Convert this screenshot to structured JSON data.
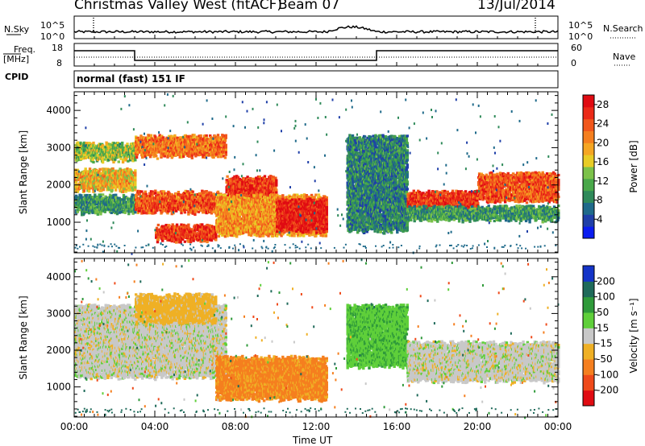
{
  "header": {
    "station": "Christmas Valley West (fitACF)",
    "beam": "Beam 07",
    "date": "13/Jul/2014"
  },
  "params": {
    "nsky_label": "N.Sky",
    "nsearch_label": "N.Search",
    "freq_label_top": "Freq.",
    "freq_label_bottom": "[MHz]",
    "nave_label": "Nave",
    "cpid_label": "CPID",
    "noise_ticks_left": [
      "10^5",
      "10^0"
    ],
    "noise_ticks_right": [
      "10^5",
      "10^0"
    ],
    "freq_ticks": [
      "18",
      "8"
    ],
    "nave_ticks": [
      "60",
      "0"
    ],
    "mode": "normal (fast) 151 IF"
  },
  "chart_data": [
    {
      "type": "heatmap",
      "title": "",
      "xlabel": "Time UT",
      "ylabel": "Slant Range [km]",
      "xlim": [
        "00:00",
        "24:00"
      ],
      "ylim": [
        180,
        4500
      ],
      "x_ticks": [
        "00:00",
        "04:00",
        "08:00",
        "12:00",
        "16:00",
        "20:00",
        "00:00"
      ],
      "y_ticks": [
        1000,
        2000,
        3000,
        4000
      ],
      "colorbar": {
        "label": "Power [dB]",
        "ticks": [
          4,
          8,
          12,
          16,
          20,
          24,
          28
        ],
        "range": [
          0,
          30
        ],
        "colors": [
          "#0a1cf0",
          "#1f3fa8",
          "#1f6a8a",
          "#2f8a5a",
          "#49a84a",
          "#7cc24a",
          "#e8cc26",
          "#f5a623",
          "#f57f1f",
          "#f1571c",
          "#eb2a18",
          "#e00b12"
        ]
      },
      "structures": [
        {
          "start_h": 0.0,
          "end_h": 3.0,
          "range_km": [
            2700,
            3100
          ],
          "power_db": 14
        },
        {
          "start_h": 0.0,
          "end_h": 3.0,
          "range_km": [
            1900,
            2400
          ],
          "power_db": 18
        },
        {
          "start_h": 0.0,
          "end_h": 3.0,
          "range_km": [
            1300,
            1700
          ],
          "power_db": 10
        },
        {
          "start_h": 3.0,
          "end_h": 7.5,
          "range_km": [
            1300,
            1800
          ],
          "power_db": 24
        },
        {
          "start_h": 3.0,
          "end_h": 7.5,
          "range_km": [
            2800,
            3300
          ],
          "power_db": 22
        },
        {
          "start_h": 7.5,
          "end_h": 10.0,
          "range_km": [
            1400,
            2200
          ],
          "power_db": 26
        },
        {
          "start_h": 4.0,
          "end_h": 7.0,
          "range_km": [
            550,
            900
          ],
          "power_db": 26
        },
        {
          "start_h": 7.0,
          "end_h": 12.5,
          "range_km": [
            700,
            1700
          ],
          "power_db": 20
        },
        {
          "start_h": 10.0,
          "end_h": 12.5,
          "range_km": [
            800,
            1600
          ],
          "power_db": 28
        },
        {
          "start_h": 13.5,
          "end_h": 16.5,
          "range_km": [
            800,
            3300
          ],
          "power_db": 8
        },
        {
          "start_h": 16.5,
          "end_h": 20.0,
          "range_km": [
            1300,
            1800
          ],
          "power_db": 26
        },
        {
          "start_h": 20.0,
          "end_h": 24.0,
          "range_km": [
            1600,
            2300
          ],
          "power_db": 24
        },
        {
          "start_h": 16.5,
          "end_h": 24.0,
          "range_km": [
            1100,
            1400
          ],
          "power_db": 10
        }
      ]
    },
    {
      "type": "heatmap",
      "title": "",
      "xlabel": "Time UT",
      "ylabel": "Slant Range [km]",
      "xlim": [
        "00:00",
        "24:00"
      ],
      "ylim": [
        180,
        4500
      ],
      "x_ticks": [
        "00:00",
        "04:00",
        "08:00",
        "12:00",
        "16:00",
        "20:00",
        "00:00"
      ],
      "y_ticks": [
        1000,
        2000,
        3000,
        4000
      ],
      "colorbar": {
        "label": "Velocity [m s⁻¹]",
        "ticks": [
          200,
          100,
          50,
          15,
          -15,
          -50,
          -100,
          -200
        ],
        "colors": [
          "#1434c8",
          "#1f6a5a",
          "#2f9a3a",
          "#5fcf3a",
          "#c8c8c8",
          "#efb025",
          "#f57f1f",
          "#ef4a1a",
          "#e00b12"
        ]
      },
      "structures": [
        {
          "start_h": 0.0,
          "end_h": 7.5,
          "range_km": [
            1300,
            3200
          ],
          "velocity_ms": 0
        },
        {
          "start_h": 7.0,
          "end_h": 12.5,
          "range_km": [
            700,
            1800
          ],
          "velocity_ms": -60
        },
        {
          "start_h": 3.0,
          "end_h": 7.0,
          "range_km": [
            2800,
            3500
          ],
          "velocity_ms": -30
        },
        {
          "start_h": 13.5,
          "end_h": 16.5,
          "range_km": [
            1600,
            3200
          ],
          "velocity_ms": 40
        },
        {
          "start_h": 16.5,
          "end_h": 24.0,
          "range_km": [
            1200,
            2200
          ],
          "velocity_ms": 0
        }
      ]
    }
  ]
}
